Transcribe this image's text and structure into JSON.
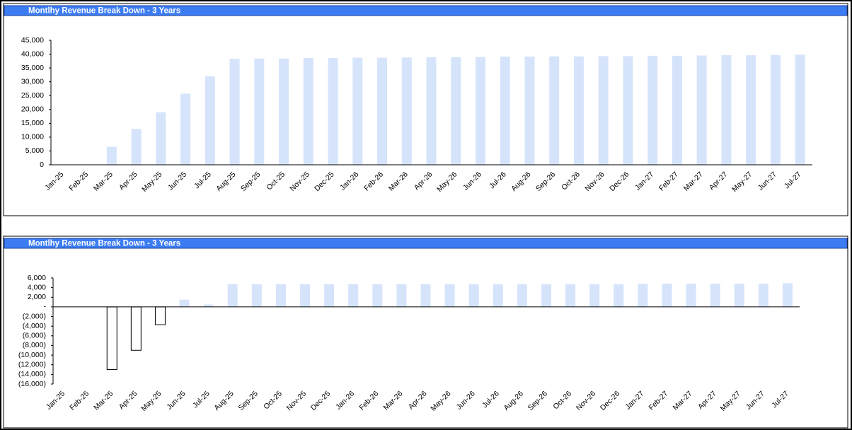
{
  "chart_data": [
    {
      "type": "bar",
      "title": "Montlhy Revenue Break Down - 3 Years",
      "categories": [
        "Jan-25",
        "Feb-25",
        "Mar-25",
        "Apr-25",
        "May-25",
        "Jun-25",
        "Jul-25",
        "Aug-25",
        "Sep-25",
        "Oct-25",
        "Nov-25",
        "Dec-25",
        "Jan-26",
        "Feb-26",
        "Mar-26",
        "Apr-26",
        "May-26",
        "Jun-26",
        "Jul-26",
        "Aug-26",
        "Sep-26",
        "Oct-26",
        "Nov-26",
        "Dec-26",
        "Jan-27",
        "Feb-27",
        "Mar-27",
        "Apr-27",
        "May-27",
        "Jun-27",
        "Jul-27"
      ],
      "values": [
        0,
        0,
        6500,
        13000,
        19000,
        25700,
        32000,
        38300,
        38400,
        38400,
        38600,
        38600,
        38700,
        38700,
        38800,
        38900,
        38900,
        39000,
        39100,
        39100,
        39200,
        39200,
        39300,
        39300,
        39400,
        39400,
        39500,
        39600,
        39600,
        39700,
        39800
      ],
      "color": "#d6e4fb",
      "ylim": [
        0,
        45000
      ],
      "yticks": [
        0,
        {
          "value": 5000,
          "label": "5,000"
        },
        {
          "value": 10000,
          "label": "10,000"
        },
        {
          "value": 15000,
          "label": "15,000"
        },
        {
          "value": 20000,
          "label": "20,000"
        },
        {
          "value": 25000,
          "label": "25,000"
        },
        {
          "value": 30000,
          "label": "30,000"
        },
        {
          "value": 35000,
          "label": "35,000"
        },
        {
          "value": 40000,
          "label": "40,000"
        },
        {
          "value": 45000,
          "label": "45,000"
        }
      ],
      "grid": false
    },
    {
      "type": "bar",
      "title": "Montlhy Revenue Break Down - 3 Years",
      "categories": [
        "Jan-25",
        "Feb-25",
        "Mar-25",
        "Apr-25",
        "May-25",
        "Jun-25",
        "Jul-25",
        "Aug-25",
        "Sep-25",
        "Oct-25",
        "Nov-25",
        "Dec-25",
        "Jan-26",
        "Feb-26",
        "Mar-26",
        "Apr-26",
        "May-26",
        "Jun-26",
        "Jul-26",
        "Aug-26",
        "Sep-26",
        "Oct-26",
        "Nov-26",
        "Dec-26",
        "Jan-27",
        "Feb-27",
        "Mar-27",
        "Apr-27",
        "May-27",
        "Jun-27",
        "Jul-27"
      ],
      "values": [
        0,
        0,
        -13000,
        -9000,
        -3700,
        1500,
        500,
        4700,
        4700,
        4700,
        4700,
        4700,
        4700,
        4700,
        4700,
        4700,
        4700,
        4700,
        4700,
        4700,
        4700,
        4700,
        4700,
        4700,
        4800,
        4800,
        4800,
        4800,
        4800,
        4800,
        4900
      ],
      "color": "#d6e4fb",
      "negative_color": "#ffffff",
      "negative_stroke": "#000000",
      "ylim": [
        -16000,
        6000
      ],
      "yticks": [
        {
          "value": 6000,
          "label": "6,000"
        },
        {
          "value": 4000,
          "label": "4,000"
        },
        {
          "value": 2000,
          "label": "2,000"
        },
        {
          "value": 0,
          "label": "-"
        },
        {
          "value": -2000,
          "label": "(2,000)"
        },
        {
          "value": -4000,
          "label": "(4,000)"
        },
        {
          "value": -6000,
          "label": "(6,000)"
        },
        {
          "value": -8000,
          "label": "(8,000)"
        },
        {
          "value": -10000,
          "label": "(10,000)"
        },
        {
          "value": -12000,
          "label": "(12,000)"
        },
        {
          "value": -14000,
          "label": "(14,000)"
        },
        {
          "value": -16000,
          "label": "(16,000)"
        }
      ],
      "grid": false
    }
  ]
}
